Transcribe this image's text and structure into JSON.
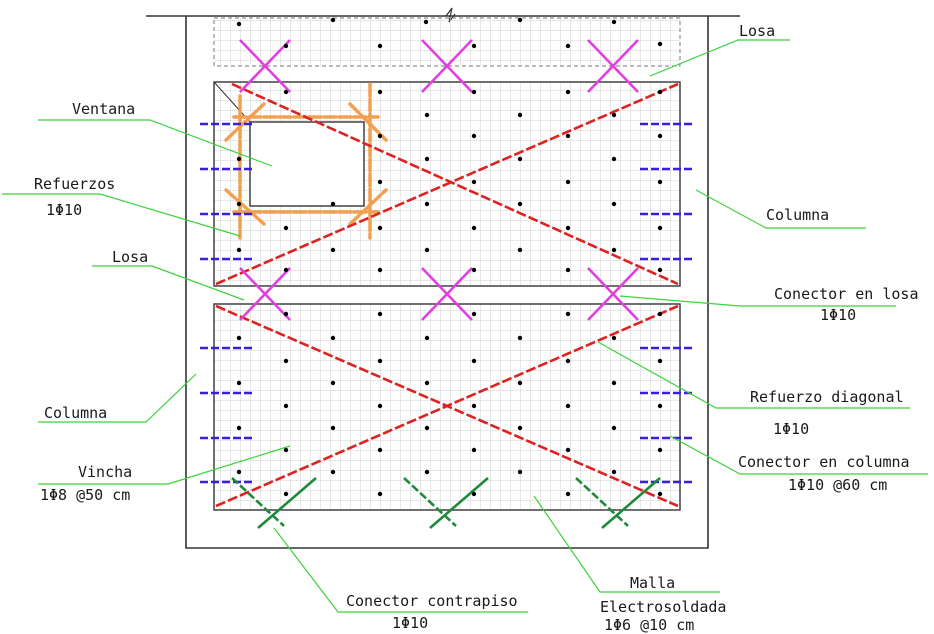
{
  "labels": {
    "losa_top": "Losa",
    "ventana": "Ventana",
    "refuerzos": "Refuerzos",
    "refuerzos_spec": "1Φ10",
    "columna_right": "Columna",
    "losa_mid": "Losa",
    "conector_losa": "Conector en losa",
    "conector_losa_spec": "1Φ10",
    "columna_left": "Columna",
    "refuerzo_diagonal": "Refuerzo diagonal",
    "refuerzo_diagonal_spec": "1Φ10",
    "vincha": "Vincha",
    "vincha_spec": "1Φ8 @50 cm",
    "conector_columna": "Conector en columna",
    "conector_columna_spec": "1Φ10 @60 cm",
    "conector_contrapiso": "Conector contrapiso",
    "conector_contrapiso_spec": "1Φ10",
    "malla": "Malla",
    "malla_sub": "Electrosoldada",
    "malla_spec": "1Φ6 @10 cm"
  },
  "colors": {
    "outline": "#333333",
    "mesh": "#c4c4c4",
    "leader": "#3cd23c",
    "diagonal": "#dd2222",
    "slab_connector": "#e040e0",
    "column_connector": "#3a1fd6",
    "reinforcement": "#f0a050",
    "floor_connector": "#1e8a3a",
    "dot": "#000000"
  }
}
